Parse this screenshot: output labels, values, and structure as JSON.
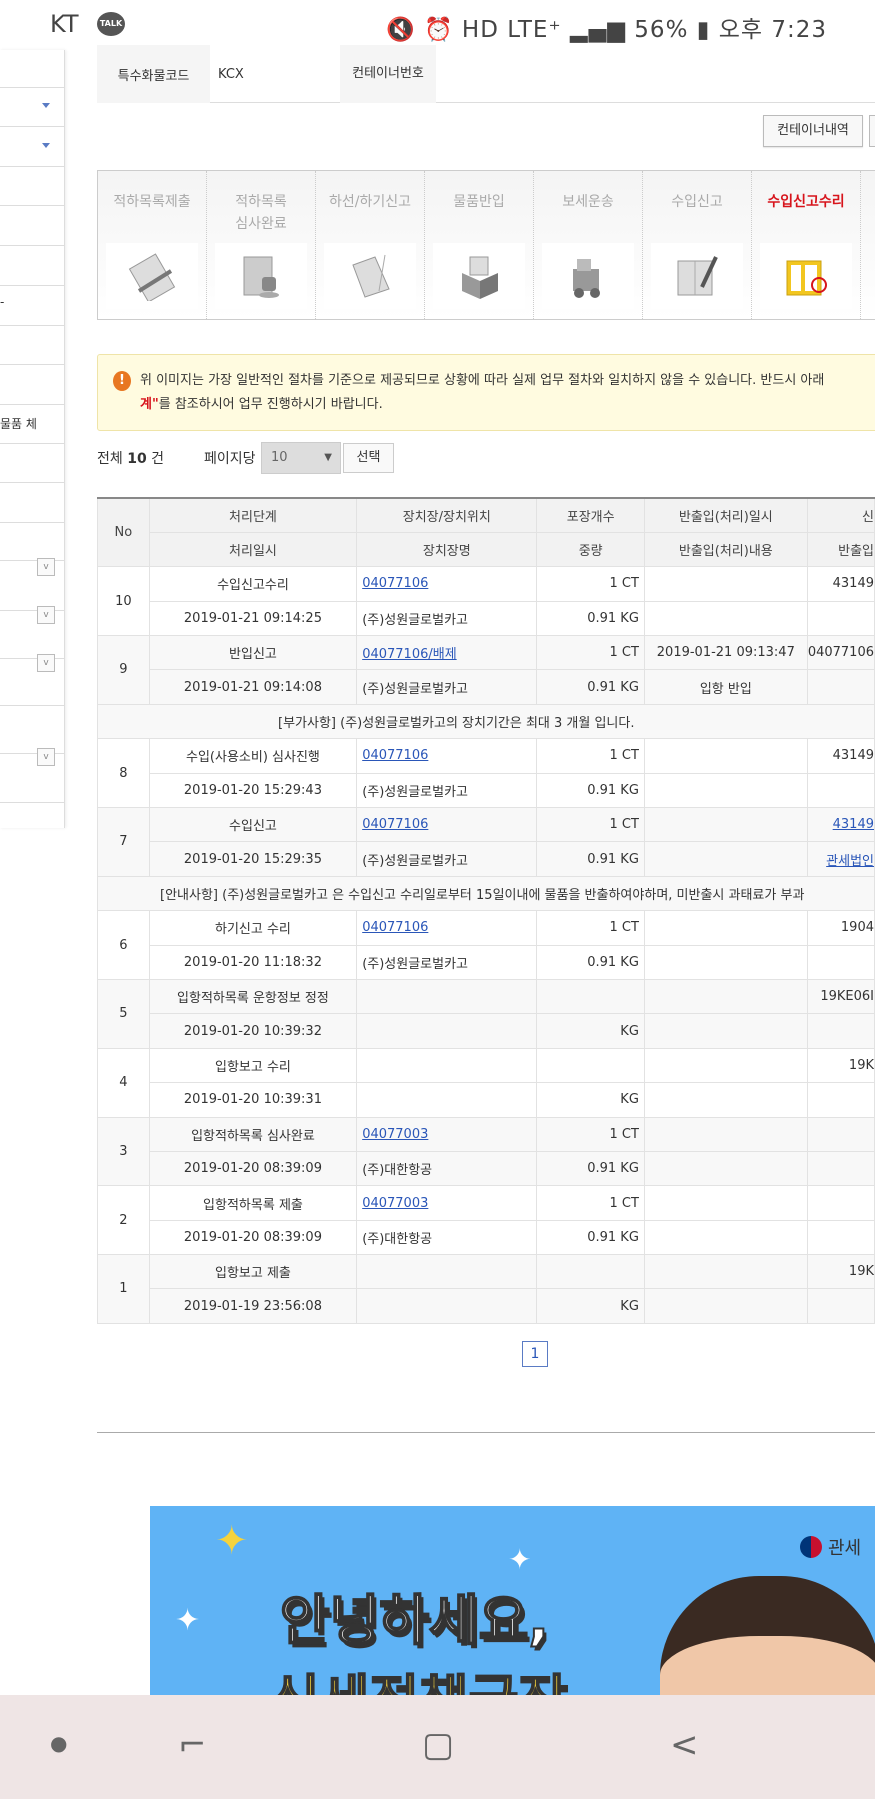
{
  "status_bar": {
    "carrier": "KT",
    "talk_icon": "TALK",
    "indicators": "🔇 ⏰ HD LTE⁺ ▂▄▆ ",
    "battery": "56%",
    "time": "오후 7:23"
  },
  "sidebar": {
    "partial_text": "물품 체",
    "dash": "-"
  },
  "info": {
    "special_cargo_code_label": "특수화물코드",
    "special_cargo_code_value": "KCX",
    "container_no_label": "컨테이너번호"
  },
  "container_button": "컨테이너내역",
  "steps": [
    {
      "label": "적하목록제출",
      "icon": "clipboard-pen-icon",
      "active": false
    },
    {
      "label": "적하목록 심사완료",
      "icon": "stamp-document-icon",
      "active": false
    },
    {
      "label": "하선/하기신고",
      "icon": "open-book-icon",
      "active": false
    },
    {
      "label": "물품반입",
      "icon": "box-icon",
      "active": false
    },
    {
      "label": "보세운송",
      "icon": "forklift-truck-icon",
      "active": false
    },
    {
      "label": "수입신고",
      "icon": "document-pen-icon",
      "active": false
    },
    {
      "label": "수입신고수리",
      "icon": "approved-document-icon",
      "active": true
    }
  ],
  "notice": {
    "line1": "위 이미지는 가장 일반적인 절차를 기준으로 제공되므로 상황에 따라 실제 업무 절차와 일치하지 않을 수 있습니다. 반드시 아래",
    "line2_red": "계\"",
    "line2": "를 참조하시어 업무 진행하시기 바랍니다.",
    "icon": "exclamation-icon"
  },
  "list_controls": {
    "total_prefix": "전체",
    "total_count": "10",
    "total_suffix": "건",
    "per_page_label": "페이지당",
    "per_page_value": "10",
    "select_button": "선택"
  },
  "table": {
    "headers_row1": [
      "No",
      "처리단계",
      "장치장/장치위치",
      "포장개수",
      "반출입(처리)일시",
      "신"
    ],
    "headers_row2": [
      "처리일시",
      "장치장명",
      "중량",
      "반출입(처리)내용",
      "반출입"
    ],
    "rows": [
      {
        "no": "10",
        "stage": "수입신고수리",
        "location": "04077106",
        "location_link": true,
        "packages": "1 CT",
        "inout_datetime": "",
        "extra1": "43149",
        "extra1_link": false,
        "date": "2019-01-21 09:14:25",
        "warehouse": "(주)성원글로벌카고",
        "weight": "0.91 KG",
        "inout_content": "",
        "extra2": "",
        "extra2_link": false
      },
      {
        "no": "9",
        "stage": "반입신고",
        "location": "04077106/배제",
        "location_link": true,
        "packages": "1 CT",
        "inout_datetime": "2019-01-21 09:13:47",
        "extra1": "04077106",
        "extra1_link": false,
        "date": "2019-01-21 09:14:08",
        "warehouse": "(주)성원글로벌카고",
        "weight": "0.91 KG",
        "inout_content": "입항 반입",
        "extra2": "",
        "extra2_link": false,
        "note": "[부가사항] (주)성원글로벌카고의 장치기간은 최대 3 개월 입니다."
      },
      {
        "no": "8",
        "stage": "수입(사용소비) 심사진행",
        "location": "04077106",
        "location_link": true,
        "packages": "1 CT",
        "inout_datetime": "",
        "extra1": "43149",
        "extra1_link": false,
        "date": "2019-01-20 15:29:43",
        "warehouse": "(주)성원글로벌카고",
        "weight": "0.91 KG",
        "inout_content": "",
        "extra2": "",
        "extra2_link": false
      },
      {
        "no": "7",
        "stage": "수입신고",
        "location": "04077106",
        "location_link": true,
        "packages": "1 CT",
        "inout_datetime": "",
        "extra1": "43149",
        "extra1_link": true,
        "date": "2019-01-20 15:29:35",
        "warehouse": "(주)성원글로벌카고",
        "weight": "0.91 KG",
        "inout_content": "",
        "extra2": "관세법인",
        "extra2_link": true,
        "note": "[안내사항] (주)성원글로벌카고 은 수입신고 수리일로부터 15일이내에 물품을 반출하여야하며, 미반출시 과태료가 부과"
      },
      {
        "no": "6",
        "stage": "하기신고 수리",
        "location": "04077106",
        "location_link": true,
        "packages": "1 CT",
        "inout_datetime": "",
        "extra1": "1904",
        "extra1_link": false,
        "date": "2019-01-20 11:18:32",
        "warehouse": "(주)성원글로벌카고",
        "weight": "0.91 KG",
        "inout_content": "",
        "extra2": "",
        "extra2_link": false
      },
      {
        "no": "5",
        "stage": "입항적하목록 운항정보 정정",
        "location": "",
        "location_link": false,
        "packages": "",
        "inout_datetime": "",
        "extra1": "19KE06I",
        "extra1_link": false,
        "date": "2019-01-20 10:39:32",
        "warehouse": "",
        "weight": "KG",
        "inout_content": "",
        "extra2": "",
        "extra2_link": false
      },
      {
        "no": "4",
        "stage": "입항보고 수리",
        "location": "",
        "location_link": false,
        "packages": "",
        "inout_datetime": "",
        "extra1": "19K",
        "extra1_link": false,
        "date": "2019-01-20 10:39:31",
        "warehouse": "",
        "weight": "KG",
        "inout_content": "",
        "extra2": "",
        "extra2_link": false
      },
      {
        "no": "3",
        "stage": "입항적하목록 심사완료",
        "location": "04077003",
        "location_link": true,
        "packages": "1 CT",
        "inout_datetime": "",
        "extra1": "",
        "extra1_link": false,
        "date": "2019-01-20 08:39:09",
        "warehouse": "(주)대한항공",
        "weight": "0.91 KG",
        "inout_content": "",
        "extra2": "",
        "extra2_link": false
      },
      {
        "no": "2",
        "stage": "입항적하목록 제출",
        "location": "04077003",
        "location_link": true,
        "packages": "1 CT",
        "inout_datetime": "",
        "extra1": "",
        "extra1_link": false,
        "date": "2019-01-20 08:39:09",
        "warehouse": "(주)대한항공",
        "weight": "0.91 KG",
        "inout_content": "",
        "extra2": "",
        "extra2_link": false
      },
      {
        "no": "1",
        "stage": "입항보고 제출",
        "location": "",
        "location_link": false,
        "packages": "",
        "inout_datetime": "",
        "extra1": "19K",
        "extra1_link": false,
        "date": "2019-01-19 23:56:08",
        "warehouse": "",
        "weight": "KG",
        "inout_content": "",
        "extra2": "",
        "extra2_link": false
      }
    ]
  },
  "pagination": {
    "current": "1"
  },
  "banner": {
    "org": "관세",
    "headline1": "안녕하세요,",
    "headline2": "신세정책국장"
  },
  "nav_bar": {
    "dot": "●",
    "recent": "⌐",
    "home": "▢",
    "back": "<"
  },
  "colors": {
    "active_step": "#d7141c",
    "link": "#2a56b8",
    "notice_bg": "#fffbe0",
    "banner_bg": "#5fb3f5",
    "navbar_bg": "#efe5e5"
  }
}
